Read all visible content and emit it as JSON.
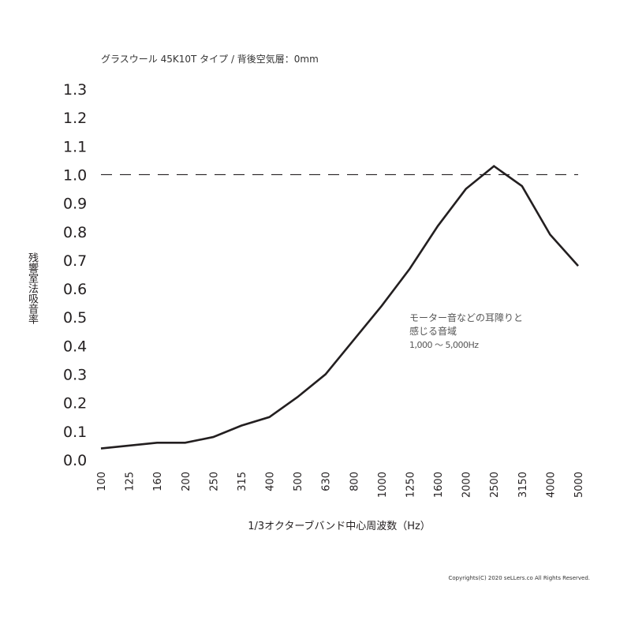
{
  "chart_data": {
    "type": "line",
    "title": "グラスウール 45K10T タイプ /  背後空気層：0mm",
    "xlabel": "1/3オクターブバンド中心周波数（Hz）",
    "ylabel": "残響室法吸音率",
    "categories": [
      "100",
      "125",
      "160",
      "200",
      "250",
      "315",
      "400",
      "500",
      "630",
      "800",
      "1000",
      "1250",
      "1600",
      "2000",
      "2500",
      "3150",
      "4000",
      "5000"
    ],
    "values": [
      0.04,
      0.05,
      0.06,
      0.06,
      0.08,
      0.12,
      0.15,
      0.22,
      0.3,
      0.42,
      0.54,
      0.67,
      0.82,
      0.95,
      1.03,
      0.96,
      0.79,
      0.68
    ],
    "ylim": [
      0,
      1.3
    ],
    "yticks": [
      "0.0",
      "0.1",
      "0.2",
      "0.3",
      "0.4",
      "0.5",
      "0.6",
      "0.7",
      "0.8",
      "0.9",
      "1.0",
      "1.1",
      "1.2",
      "1.3"
    ],
    "reference_line": 1.0,
    "grid": false,
    "line_color": "#231f20",
    "annotation": {
      "line1": "モーター音などの耳障りと",
      "line2": "感じる音域",
      "line3": "1,000 〜 5,000Hz"
    }
  },
  "footer": {
    "copyright": "Copyrights(C) 2020 seLLers.co All Rights Reserved."
  }
}
